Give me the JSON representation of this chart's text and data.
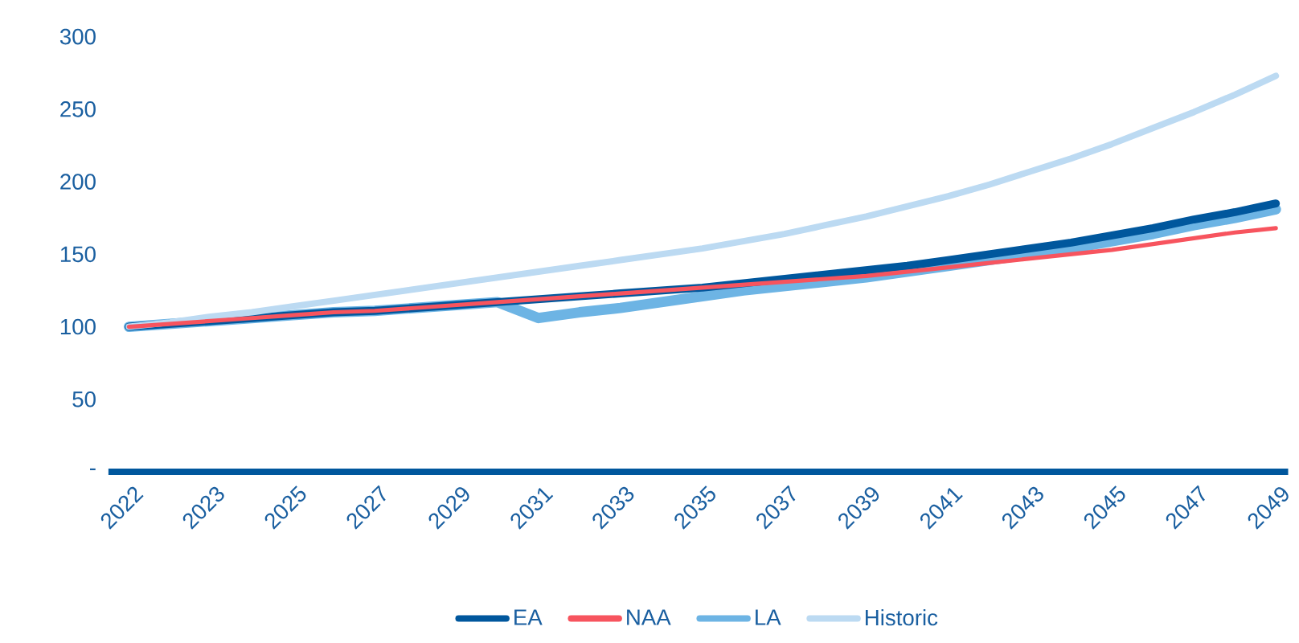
{
  "chart_data": {
    "type": "line",
    "categories": [
      "2022",
      null,
      "2023",
      null,
      "2025",
      null,
      "2027",
      null,
      "2029",
      null,
      "2031",
      null,
      "2033",
      null,
      "2035",
      null,
      "2037",
      null,
      "2039",
      null,
      "2041",
      null,
      "2043",
      null,
      "2045",
      null,
      "2047",
      null,
      "2049"
    ],
    "ylim": [
      0,
      300
    ],
    "yticks": [
      {
        "value": 0,
        "label": "-"
      },
      50,
      100,
      150,
      200,
      250,
      300
    ],
    "legend": "bottom",
    "grid": false,
    "marker": "none",
    "line_style": "solid",
    "series": [
      {
        "name": "EA",
        "color": "#00579d",
        "values": [
          100,
          102,
          104,
          106,
          108,
          110,
          111,
          113,
          115,
          117,
          119,
          121,
          123,
          125,
          127,
          130,
          133,
          136,
          139,
          142,
          146,
          150,
          154,
          158,
          163,
          168,
          174,
          179,
          185
        ]
      },
      {
        "name": "NAA",
        "color": "#f7545e",
        "values": [
          100,
          102,
          104,
          106,
          108,
          110,
          111,
          113,
          115,
          117,
          119,
          121,
          123,
          125,
          127,
          129,
          131,
          133,
          135,
          138,
          141,
          144,
          147,
          150,
          153,
          157,
          161,
          165,
          168
        ]
      },
      {
        "name": "LA",
        "color": "#6db4e4",
        "values": [
          100,
          102,
          104,
          106,
          108,
          110,
          111,
          113,
          115,
          117,
          106,
          110,
          113,
          117,
          121,
          125,
          128,
          131,
          134,
          138,
          142,
          146,
          150,
          154,
          159,
          164,
          170,
          175,
          181
        ]
      },
      {
        "name": "Historic",
        "color": "#bcdaf2",
        "values": [
          100,
          103,
          107,
          110,
          114,
          118,
          122,
          126,
          130,
          134,
          138,
          142,
          146,
          150,
          154,
          159,
          164,
          170,
          176,
          183,
          190,
          198,
          207,
          216,
          226,
          237,
          248,
          260,
          273
        ]
      }
    ]
  }
}
